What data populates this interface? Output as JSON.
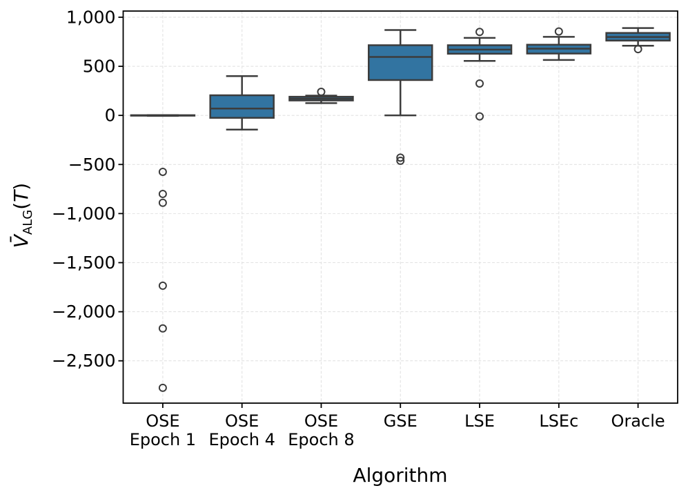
{
  "figure": {
    "background": "#ffffff"
  },
  "chart_data": {
    "type": "boxplot",
    "title": "",
    "xlabel": "Algorithm",
    "ylabel": "V̄_ALG(T)",
    "ylabel_parts": {
      "variable": "V̄",
      "subscript": "ALG",
      "suffix_open": "(",
      "suffix_var": "T",
      "suffix_close": ")"
    },
    "ylim": [
      -2931,
      1063
    ],
    "grid": true,
    "grid_style": "dashed",
    "legend": "none",
    "yticks": [
      {
        "value": 1000,
        "label": "1,000"
      },
      {
        "value": 500,
        "label": "500"
      },
      {
        "value": 0,
        "label": "0"
      },
      {
        "value": -500,
        "label": "−500"
      },
      {
        "value": -1000,
        "label": "−1,000"
      },
      {
        "value": -1500,
        "label": "−1,500"
      },
      {
        "value": -2000,
        "label": "−2,000"
      },
      {
        "value": -2500,
        "label": "−2,500"
      }
    ],
    "categories": [
      "OSE\nEpoch 1",
      "OSE\nEpoch 4",
      "OSE\nEpoch 8",
      "GSE",
      "LSE",
      "LSEc",
      "Oracle"
    ],
    "boxes": [
      {
        "label": "OSE\nEpoch 1",
        "whisker_low": -5,
        "q1": -3,
        "median": 0,
        "q3": 2,
        "whisker_high": 3,
        "outliers": [
          -575,
          -800,
          -890,
          -1735,
          -2170,
          -2775
        ]
      },
      {
        "label": "OSE\nEpoch 4",
        "whisker_low": -145,
        "q1": -25,
        "median": 70,
        "q3": 205,
        "whisker_high": 400,
        "outliers": []
      },
      {
        "label": "OSE\nEpoch 8",
        "whisker_low": 125,
        "q1": 152,
        "median": 170,
        "q3": 190,
        "whisker_high": 202,
        "outliers": [
          240
        ]
      },
      {
        "label": "GSE",
        "whisker_low": 0,
        "q1": 360,
        "median": 595,
        "q3": 715,
        "whisker_high": 870,
        "outliers": [
          -430,
          -462
        ]
      },
      {
        "label": "LSE",
        "whisker_low": 555,
        "q1": 628,
        "median": 670,
        "q3": 715,
        "whisker_high": 790,
        "outliers": [
          850,
          325,
          -10
        ]
      },
      {
        "label": "LSEc",
        "whisker_low": 565,
        "q1": 630,
        "median": 680,
        "q3": 720,
        "whisker_high": 800,
        "outliers": [
          855
        ]
      },
      {
        "label": "Oracle",
        "whisker_low": 710,
        "q1": 762,
        "median": 798,
        "q3": 840,
        "whisker_high": 890,
        "outliers": [
          675
        ]
      }
    ],
    "colors": {
      "box_fill": "#3274a1",
      "box_edge": "#3c3c3c",
      "median": "#3c3c3c",
      "whisker": "#3c3c3c",
      "outlier_edge": "#3c3c3c",
      "grid": "#e2e2e2",
      "spine": "#000000",
      "text": "#000000",
      "background": "#ffffff"
    }
  }
}
